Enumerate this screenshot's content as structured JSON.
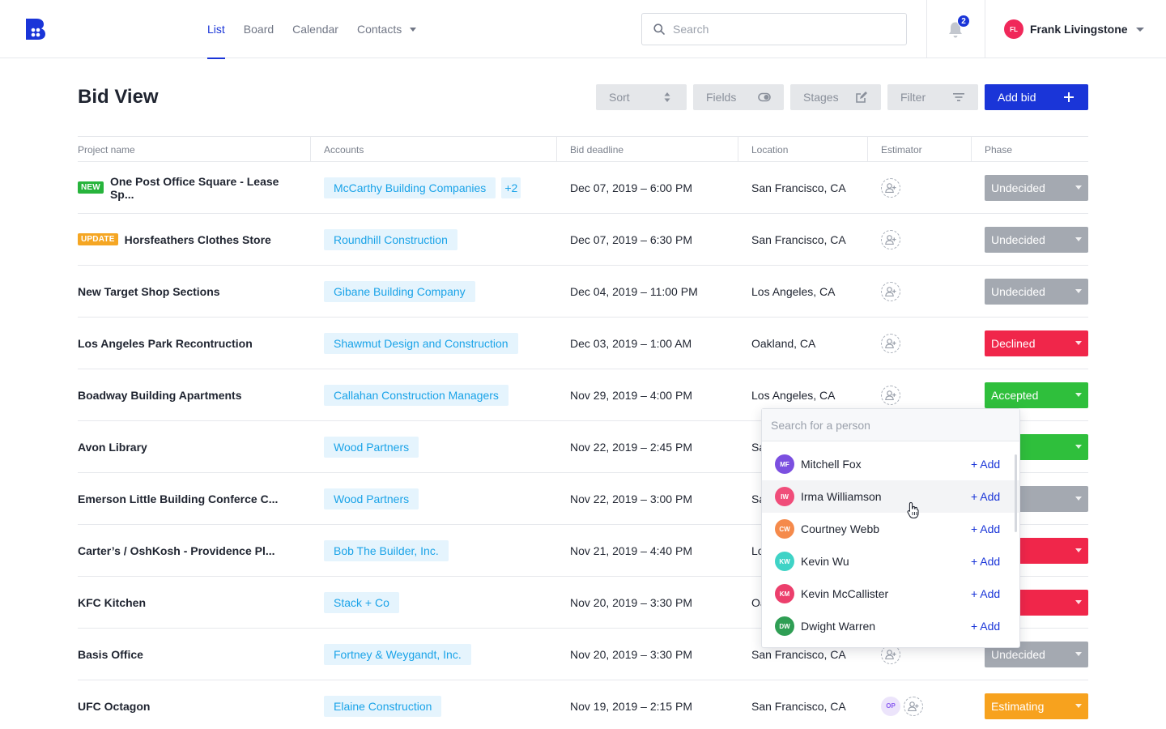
{
  "nav": {
    "items": [
      {
        "label": "List",
        "active": true
      },
      {
        "label": "Board"
      },
      {
        "label": "Calendar"
      },
      {
        "label": "Contacts",
        "has_caret": true
      }
    ]
  },
  "search": {
    "placeholder": "Search",
    "value": ""
  },
  "notifications": {
    "count": "2"
  },
  "user": {
    "initials": "FL",
    "name": "Frank Livingstone",
    "avatar_color": "#f0285a"
  },
  "page": {
    "title": "Bid View"
  },
  "toolbar": {
    "sort_label": "Sort",
    "fields_label": "Fields",
    "stages_label": "Stages",
    "filter_label": "Filter",
    "add_bid_label": "Add bid"
  },
  "table": {
    "columns": [
      "Project name",
      "Accounts",
      "Bid deadline",
      "Location",
      "Estimator",
      "Phase"
    ],
    "rows": [
      {
        "tag": "NEW",
        "project": "One Post Office Square - Lease Sp...",
        "account": "McCarthy Building Companies",
        "extra_accounts": "+2",
        "deadline": "Dec 07, 2019 – 6:00 PM",
        "location": "San Francisco, CA",
        "phase": "Undecided"
      },
      {
        "tag": "UPDATE",
        "project": "Horsfeathers Clothes Store",
        "account": "Roundhill Construction",
        "deadline": "Dec 07, 2019 – 6:30 PM",
        "location": "San Francisco, CA",
        "phase": "Undecided"
      },
      {
        "project": "New Target Shop Sections",
        "account": "Gibane Building Company",
        "deadline": "Dec 04, 2019 – 11:00 PM",
        "location": "Los Angeles, CA",
        "phase": "Undecided"
      },
      {
        "project": "Los Angeles Park Recontruction",
        "account": "Shawmut Design and Construction",
        "deadline": "Dec 03, 2019 – 1:00 AM",
        "location": "Oakland, CA",
        "phase": "Declined"
      },
      {
        "project": "Boadway Building Apartments",
        "account": "Callahan Construction Managers",
        "deadline": "Nov 29, 2019 – 4:00 PM",
        "location": "Los Angeles, CA",
        "phase": "Accepted"
      },
      {
        "project": "Avon Library",
        "account": "Wood Partners",
        "deadline": "Nov 22, 2019 – 2:45 PM",
        "location": "Sa",
        "phase": "pted"
      },
      {
        "project": "Emerson Little Building Conferce C...",
        "account": "Wood Partners",
        "deadline": "Nov 22, 2019 – 3:00 PM",
        "location": "Sa",
        "phase": "cided"
      },
      {
        "project": "Carter’s / OshKosh - Providence Pl...",
        "account": "Bob The Builder, Inc.",
        "deadline": "Nov 21, 2019 – 4:40 PM",
        "location": "Lo",
        "phase": "ned"
      },
      {
        "project": "KFC Kitchen",
        "account": "Stack + Co",
        "deadline": "Nov 20, 2019 – 3:30 PM",
        "location": "Oa",
        "phase": "ned"
      },
      {
        "project": "Basis Office",
        "account": "Fortney & Weygandt, Inc.",
        "deadline": "Nov 20, 2019 – 3:30 PM",
        "location": "San Francisco, CA",
        "phase": "Undecided"
      },
      {
        "project": "UFC Octagon",
        "account": "Elaine Construction",
        "deadline": "Nov 19, 2019 – 2:15 PM",
        "location": "San Francisco, CA",
        "estimator_initials": "OP",
        "phase": "Estimating"
      }
    ]
  },
  "phase_colors": {
    "Undecided": "#a4a9b1",
    "Declined": "#f0264a",
    "Accepted": "#2fbf3c",
    "Estimating": "#f7a21e"
  },
  "person_picker": {
    "placeholder": "Search for a person",
    "add_label": "+ Add",
    "people": [
      {
        "initials": "MF",
        "name": "Mitchell Fox",
        "color": "#7b4fe0"
      },
      {
        "initials": "IW",
        "name": "Irma Williamson",
        "color": "#f04d7a"
      },
      {
        "initials": "CW",
        "name": "Courtney Webb",
        "color": "#f58a4b"
      },
      {
        "initials": "KW",
        "name": "Kevin Wu",
        "color": "#3fd3c6"
      },
      {
        "initials": "KM",
        "name": "Kevin McCallister",
        "color": "#ec3f6c"
      },
      {
        "initials": "DW",
        "name": "Dwight Warren",
        "color": "#2f9e54"
      }
    ]
  },
  "icons": {
    "logo": "logo-icon",
    "search": "search-icon",
    "bell": "bell-icon",
    "sort": "sort-arrows-icon",
    "fields": "toggle-icon",
    "stages": "edit-icon",
    "filter": "filter-lines-icon",
    "add": "plus-icon",
    "estimator": "add-user-icon",
    "cursor": "hand-pointer-icon"
  },
  "brand_color": "#1a35d8"
}
